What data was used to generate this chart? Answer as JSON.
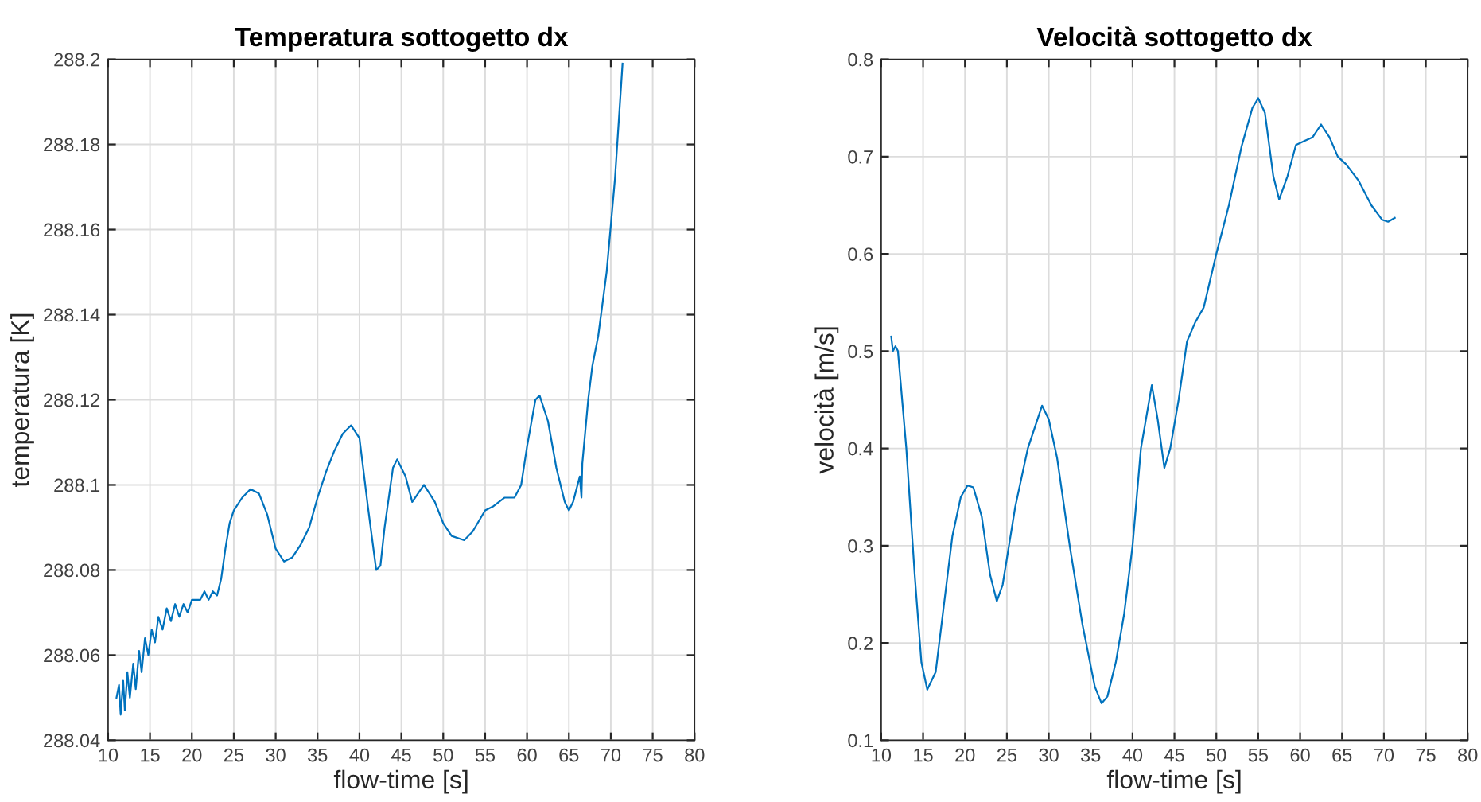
{
  "chart_data": [
    {
      "type": "line",
      "title": "Temperatura sottogetto dx",
      "xlabel": "flow-time [s]",
      "ylabel": "temperatura [K]",
      "xlim": [
        10,
        80
      ],
      "xticks": [
        10,
        15,
        20,
        25,
        30,
        35,
        40,
        45,
        50,
        55,
        60,
        65,
        70,
        75,
        80
      ],
      "ylim": [
        288.04,
        288.2
      ],
      "yticks": [
        288.04,
        288.06,
        288.08,
        288.1,
        288.12,
        288.14,
        288.16,
        288.18,
        288.2
      ],
      "grid": true,
      "legend": false,
      "series": [
        {
          "color": "#0072bd",
          "x": [
            11.0,
            11.3,
            11.5,
            11.8,
            12.0,
            12.3,
            12.6,
            13.0,
            13.3,
            13.7,
            14.0,
            14.4,
            14.8,
            15.2,
            15.6,
            16.0,
            16.5,
            17.0,
            17.5,
            18.0,
            18.5,
            19.0,
            19.5,
            20.0,
            21.0,
            21.5,
            22.0,
            22.5,
            23.0,
            23.5,
            24.0,
            24.5,
            25.0,
            26.0,
            27.0,
            28.0,
            29.0,
            30.0,
            31.0,
            32.0,
            33.0,
            34.0,
            35.0,
            36.0,
            37.0,
            38.0,
            39.0,
            40.0,
            41.0,
            42.0,
            42.5,
            43.0,
            44.0,
            44.5,
            45.5,
            46.3,
            47.0,
            47.7,
            49.0,
            50.0,
            51.0,
            52.5,
            53.5,
            55.0,
            56.0,
            57.3,
            58.5,
            59.3,
            60.0,
            61.0,
            61.5,
            62.5,
            63.5,
            64.5,
            65.0,
            65.5,
            66.3,
            66.5,
            66.6,
            67.3,
            67.8,
            68.5,
            69.5,
            70.5,
            71.4
          ],
          "values": [
            288.05,
            288.053,
            288.046,
            288.054,
            288.047,
            288.056,
            288.05,
            288.058,
            288.052,
            288.061,
            288.056,
            288.064,
            288.06,
            288.066,
            288.063,
            288.069,
            288.066,
            288.071,
            288.068,
            288.072,
            288.069,
            288.072,
            288.07,
            288.073,
            288.073,
            288.075,
            288.073,
            288.075,
            288.074,
            288.078,
            288.085,
            288.091,
            288.094,
            288.097,
            288.099,
            288.098,
            288.093,
            288.085,
            288.082,
            288.083,
            288.086,
            288.09,
            288.097,
            288.103,
            288.108,
            288.112,
            288.114,
            288.111,
            288.095,
            288.08,
            288.081,
            288.09,
            288.104,
            288.106,
            288.102,
            288.096,
            288.098,
            288.1,
            288.096,
            288.091,
            288.088,
            288.087,
            288.089,
            288.094,
            288.095,
            288.097,
            288.097,
            288.1,
            288.109,
            288.12,
            288.121,
            288.115,
            288.104,
            288.096,
            288.094,
            288.096,
            288.102,
            288.097,
            288.105,
            288.12,
            288.128,
            288.135,
            288.15,
            288.172,
            288.199
          ]
        }
      ]
    },
    {
      "type": "line",
      "title": "Velocità sottogetto dx",
      "xlabel": "flow-time [s]",
      "ylabel": "velocità [m/s]",
      "xlim": [
        10,
        80
      ],
      "xticks": [
        10,
        15,
        20,
        25,
        30,
        35,
        40,
        45,
        50,
        55,
        60,
        65,
        70,
        75,
        80
      ],
      "ylim": [
        0.1,
        0.8
      ],
      "yticks": [
        0.1,
        0.2,
        0.3,
        0.4,
        0.5,
        0.6,
        0.7,
        0.8
      ],
      "grid": true,
      "legend": false,
      "series": [
        {
          "color": "#0072bd",
          "x": [
            11.2,
            11.4,
            11.7,
            12.0,
            12.3,
            13.0,
            14.0,
            14.8,
            15.5,
            16.5,
            17.5,
            18.5,
            19.5,
            20.3,
            21.0,
            22.0,
            23.0,
            23.8,
            24.5,
            26.0,
            27.5,
            29.2,
            30.0,
            31.0,
            32.5,
            34.0,
            35.5,
            36.3,
            37.0,
            38.0,
            39.0,
            40.0,
            41.0,
            42.3,
            43.0,
            43.8,
            44.5,
            45.5,
            46.5,
            47.5,
            48.5,
            50.0,
            51.5,
            53.0,
            54.3,
            55.0,
            55.8,
            56.8,
            57.5,
            58.5,
            59.5,
            60.5,
            61.5,
            62.5,
            63.5,
            64.5,
            65.5,
            67.0,
            68.5,
            69.8,
            70.5,
            71.3
          ],
          "values": [
            0.515,
            0.5,
            0.505,
            0.5,
            0.47,
            0.4,
            0.27,
            0.18,
            0.152,
            0.17,
            0.24,
            0.31,
            0.35,
            0.362,
            0.36,
            0.33,
            0.27,
            0.243,
            0.26,
            0.34,
            0.4,
            0.444,
            0.43,
            0.39,
            0.3,
            0.22,
            0.155,
            0.138,
            0.145,
            0.18,
            0.23,
            0.3,
            0.4,
            0.465,
            0.43,
            0.38,
            0.4,
            0.45,
            0.51,
            0.53,
            0.545,
            0.6,
            0.65,
            0.71,
            0.75,
            0.76,
            0.745,
            0.68,
            0.656,
            0.68,
            0.712,
            0.716,
            0.72,
            0.733,
            0.72,
            0.7,
            0.692,
            0.675,
            0.65,
            0.635,
            0.633,
            0.637
          ]
        }
      ]
    }
  ]
}
